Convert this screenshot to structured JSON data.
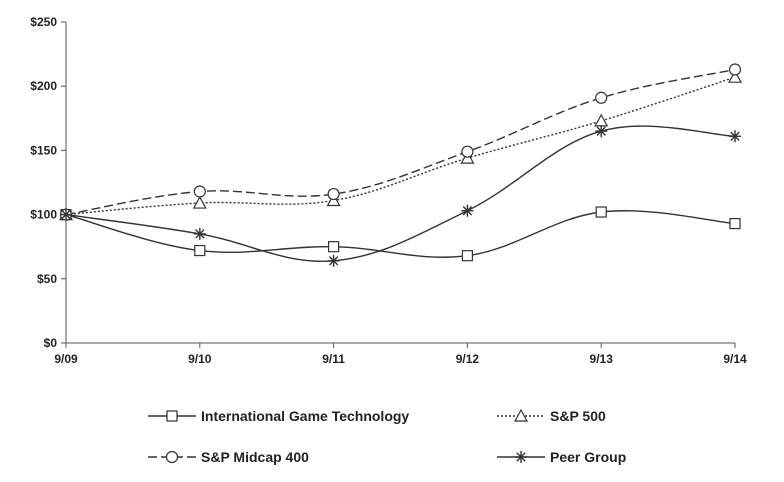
{
  "chart_data": {
    "type": "line",
    "title": "",
    "xlabel": "",
    "ylabel": "",
    "categories": [
      "9/09",
      "9/10",
      "9/11",
      "9/12",
      "9/13",
      "9/14"
    ],
    "ylim": [
      0,
      250
    ],
    "yticks": [
      0,
      50,
      100,
      150,
      200,
      250
    ],
    "ytick_labels": [
      "$0",
      "$50",
      "$100",
      "$150",
      "$200",
      "$250"
    ],
    "grid": false,
    "legend_position": "bottom",
    "series": [
      {
        "name": "International Game Technology",
        "values": [
          100,
          72,
          75,
          68,
          102,
          93
        ],
        "marker": "square",
        "dash": "solid",
        "color": "#333333"
      },
      {
        "name": "S&P 500",
        "values": [
          100,
          109,
          111,
          144,
          173,
          207
        ],
        "marker": "triangle",
        "dash": "dotted",
        "color": "#333333"
      },
      {
        "name": "S&P Midcap 400",
        "values": [
          100,
          118,
          116,
          149,
          191,
          213
        ],
        "marker": "circle",
        "dash": "dashed",
        "color": "#333333"
      },
      {
        "name": "Peer Group",
        "values": [
          100,
          85,
          64,
          103,
          165,
          161
        ],
        "marker": "star",
        "dash": "solid",
        "color": "#333333"
      }
    ]
  }
}
